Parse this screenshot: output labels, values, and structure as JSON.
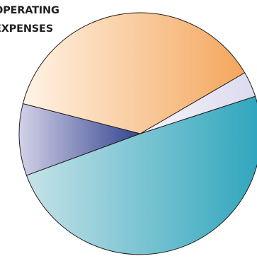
{
  "chart_data": {
    "type": "pie",
    "title_lines": [
      "OPERATING",
      "EXPENSES"
    ],
    "legend": "none",
    "slices": [
      {
        "value": 49.4,
        "color_light": "#c5e2e7",
        "color_dark": "#2ea5bd"
      },
      {
        "value": 9.6,
        "color_light": "#d3d2e9",
        "color_dark": "#34448f"
      },
      {
        "value": 37.6,
        "color_light": "#fff3e6",
        "color_dark": "#f4a65c"
      },
      {
        "value": 3.4,
        "color_light": "#f5f4fb",
        "color_dark": "#dcdaee"
      }
    ],
    "border_color": "#231f20"
  }
}
